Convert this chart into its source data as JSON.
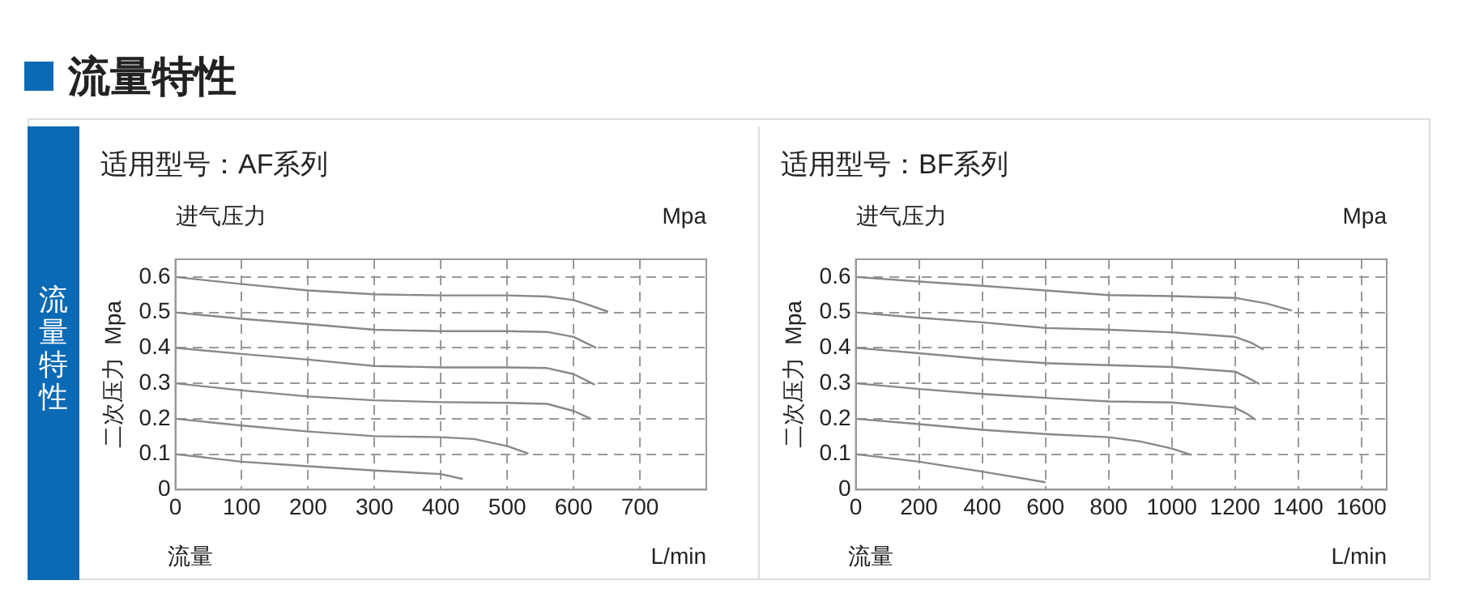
{
  "chart_data": [
    {
      "type": "line",
      "title": "适用型号：AF系列",
      "xlabel": "流量",
      "ylabel": "二次压力  Mpa",
      "annotations": [
        "进气压力",
        "Mpa",
        "L/min",
        "流量特性",
        "流量特性"
      ],
      "xlim": [
        0,
        800
      ],
      "xticks": [
        0,
        100,
        200,
        300,
        400,
        500,
        600,
        700
      ],
      "ylim": [
        0,
        0.65
      ],
      "yticks": [
        0,
        0.1,
        0.2,
        0.3,
        0.4,
        0.5,
        0.6
      ],
      "grid": true,
      "legend": false,
      "marker": "none",
      "line_style": "solid",
      "series": [
        {
          "color": "#888888",
          "x": [
            0,
            100,
            200,
            300,
            400,
            500,
            560,
            600,
            620,
            652
          ],
          "values": [
            0.6,
            0.58,
            0.562,
            0.551,
            0.548,
            0.548,
            0.545,
            0.535,
            0.523,
            0.502
          ]
        },
        {
          "color": "#888888",
          "x": [
            0,
            100,
            200,
            300,
            400,
            500,
            560,
            600,
            634
          ],
          "values": [
            0.5,
            0.482,
            0.467,
            0.451,
            0.447,
            0.447,
            0.445,
            0.431,
            0.4
          ]
        },
        {
          "color": "#888888",
          "x": [
            0,
            100,
            200,
            300,
            400,
            500,
            560,
            600,
            632
          ],
          "values": [
            0.4,
            0.383,
            0.367,
            0.349,
            0.345,
            0.345,
            0.343,
            0.326,
            0.296
          ]
        },
        {
          "color": "#888888",
          "x": [
            0,
            100,
            200,
            300,
            400,
            500,
            560,
            600,
            626
          ],
          "values": [
            0.3,
            0.28,
            0.263,
            0.252,
            0.247,
            0.245,
            0.242,
            0.222,
            0.2
          ]
        },
        {
          "color": "#888888",
          "x": [
            0,
            100,
            200,
            300,
            400,
            450,
            500,
            532
          ],
          "values": [
            0.2,
            0.181,
            0.164,
            0.151,
            0.148,
            0.143,
            0.123,
            0.102
          ]
        },
        {
          "color": "#888888",
          "x": [
            0,
            100,
            200,
            300,
            400,
            433
          ],
          "values": [
            0.1,
            0.079,
            0.066,
            0.054,
            0.044,
            0.03
          ]
        }
      ]
    },
    {
      "type": "line",
      "title": "适用型号：BF系列",
      "xlabel": "流量",
      "ylabel": "二次压力  Mpa",
      "annotations": [
        "进气压力",
        "Mpa",
        "L/min"
      ],
      "xlim": [
        0,
        1680
      ],
      "xticks": [
        0,
        200,
        400,
        600,
        800,
        1000,
        1200,
        1400,
        1600
      ],
      "ylim": [
        0,
        0.65
      ],
      "yticks": [
        0,
        0.1,
        0.2,
        0.3,
        0.4,
        0.5,
        0.6
      ],
      "grid": true,
      "legend": false,
      "marker": "none",
      "line_style": "solid",
      "series": [
        {
          "color": "#888888",
          "x": [
            0,
            200,
            400,
            600,
            800,
            1000,
            1200,
            1300,
            1380
          ],
          "values": [
            0.6,
            0.587,
            0.575,
            0.562,
            0.549,
            0.546,
            0.541,
            0.525,
            0.505
          ]
        },
        {
          "color": "#888888",
          "x": [
            0,
            200,
            400,
            600,
            800,
            1000,
            1200,
            1250,
            1290
          ],
          "values": [
            0.5,
            0.485,
            0.472,
            0.456,
            0.451,
            0.444,
            0.431,
            0.415,
            0.395
          ]
        },
        {
          "color": "#888888",
          "x": [
            0,
            200,
            400,
            600,
            800,
            1000,
            1200,
            1240,
            1277
          ],
          "values": [
            0.4,
            0.385,
            0.369,
            0.357,
            0.351,
            0.346,
            0.333,
            0.316,
            0.298
          ]
        },
        {
          "color": "#888888",
          "x": [
            0,
            200,
            400,
            600,
            800,
            1000,
            1200,
            1240,
            1265
          ],
          "values": [
            0.3,
            0.284,
            0.27,
            0.259,
            0.249,
            0.246,
            0.231,
            0.213,
            0.197
          ]
        },
        {
          "color": "#888888",
          "x": [
            0,
            200,
            400,
            600,
            800,
            900,
            1000,
            1063
          ],
          "values": [
            0.2,
            0.185,
            0.169,
            0.157,
            0.148,
            0.136,
            0.116,
            0.098
          ]
        },
        {
          "color": "#888888",
          "x": [
            0,
            200,
            400,
            600
          ],
          "values": [
            0.1,
            0.079,
            0.051,
            0.021
          ]
        }
      ]
    }
  ]
}
